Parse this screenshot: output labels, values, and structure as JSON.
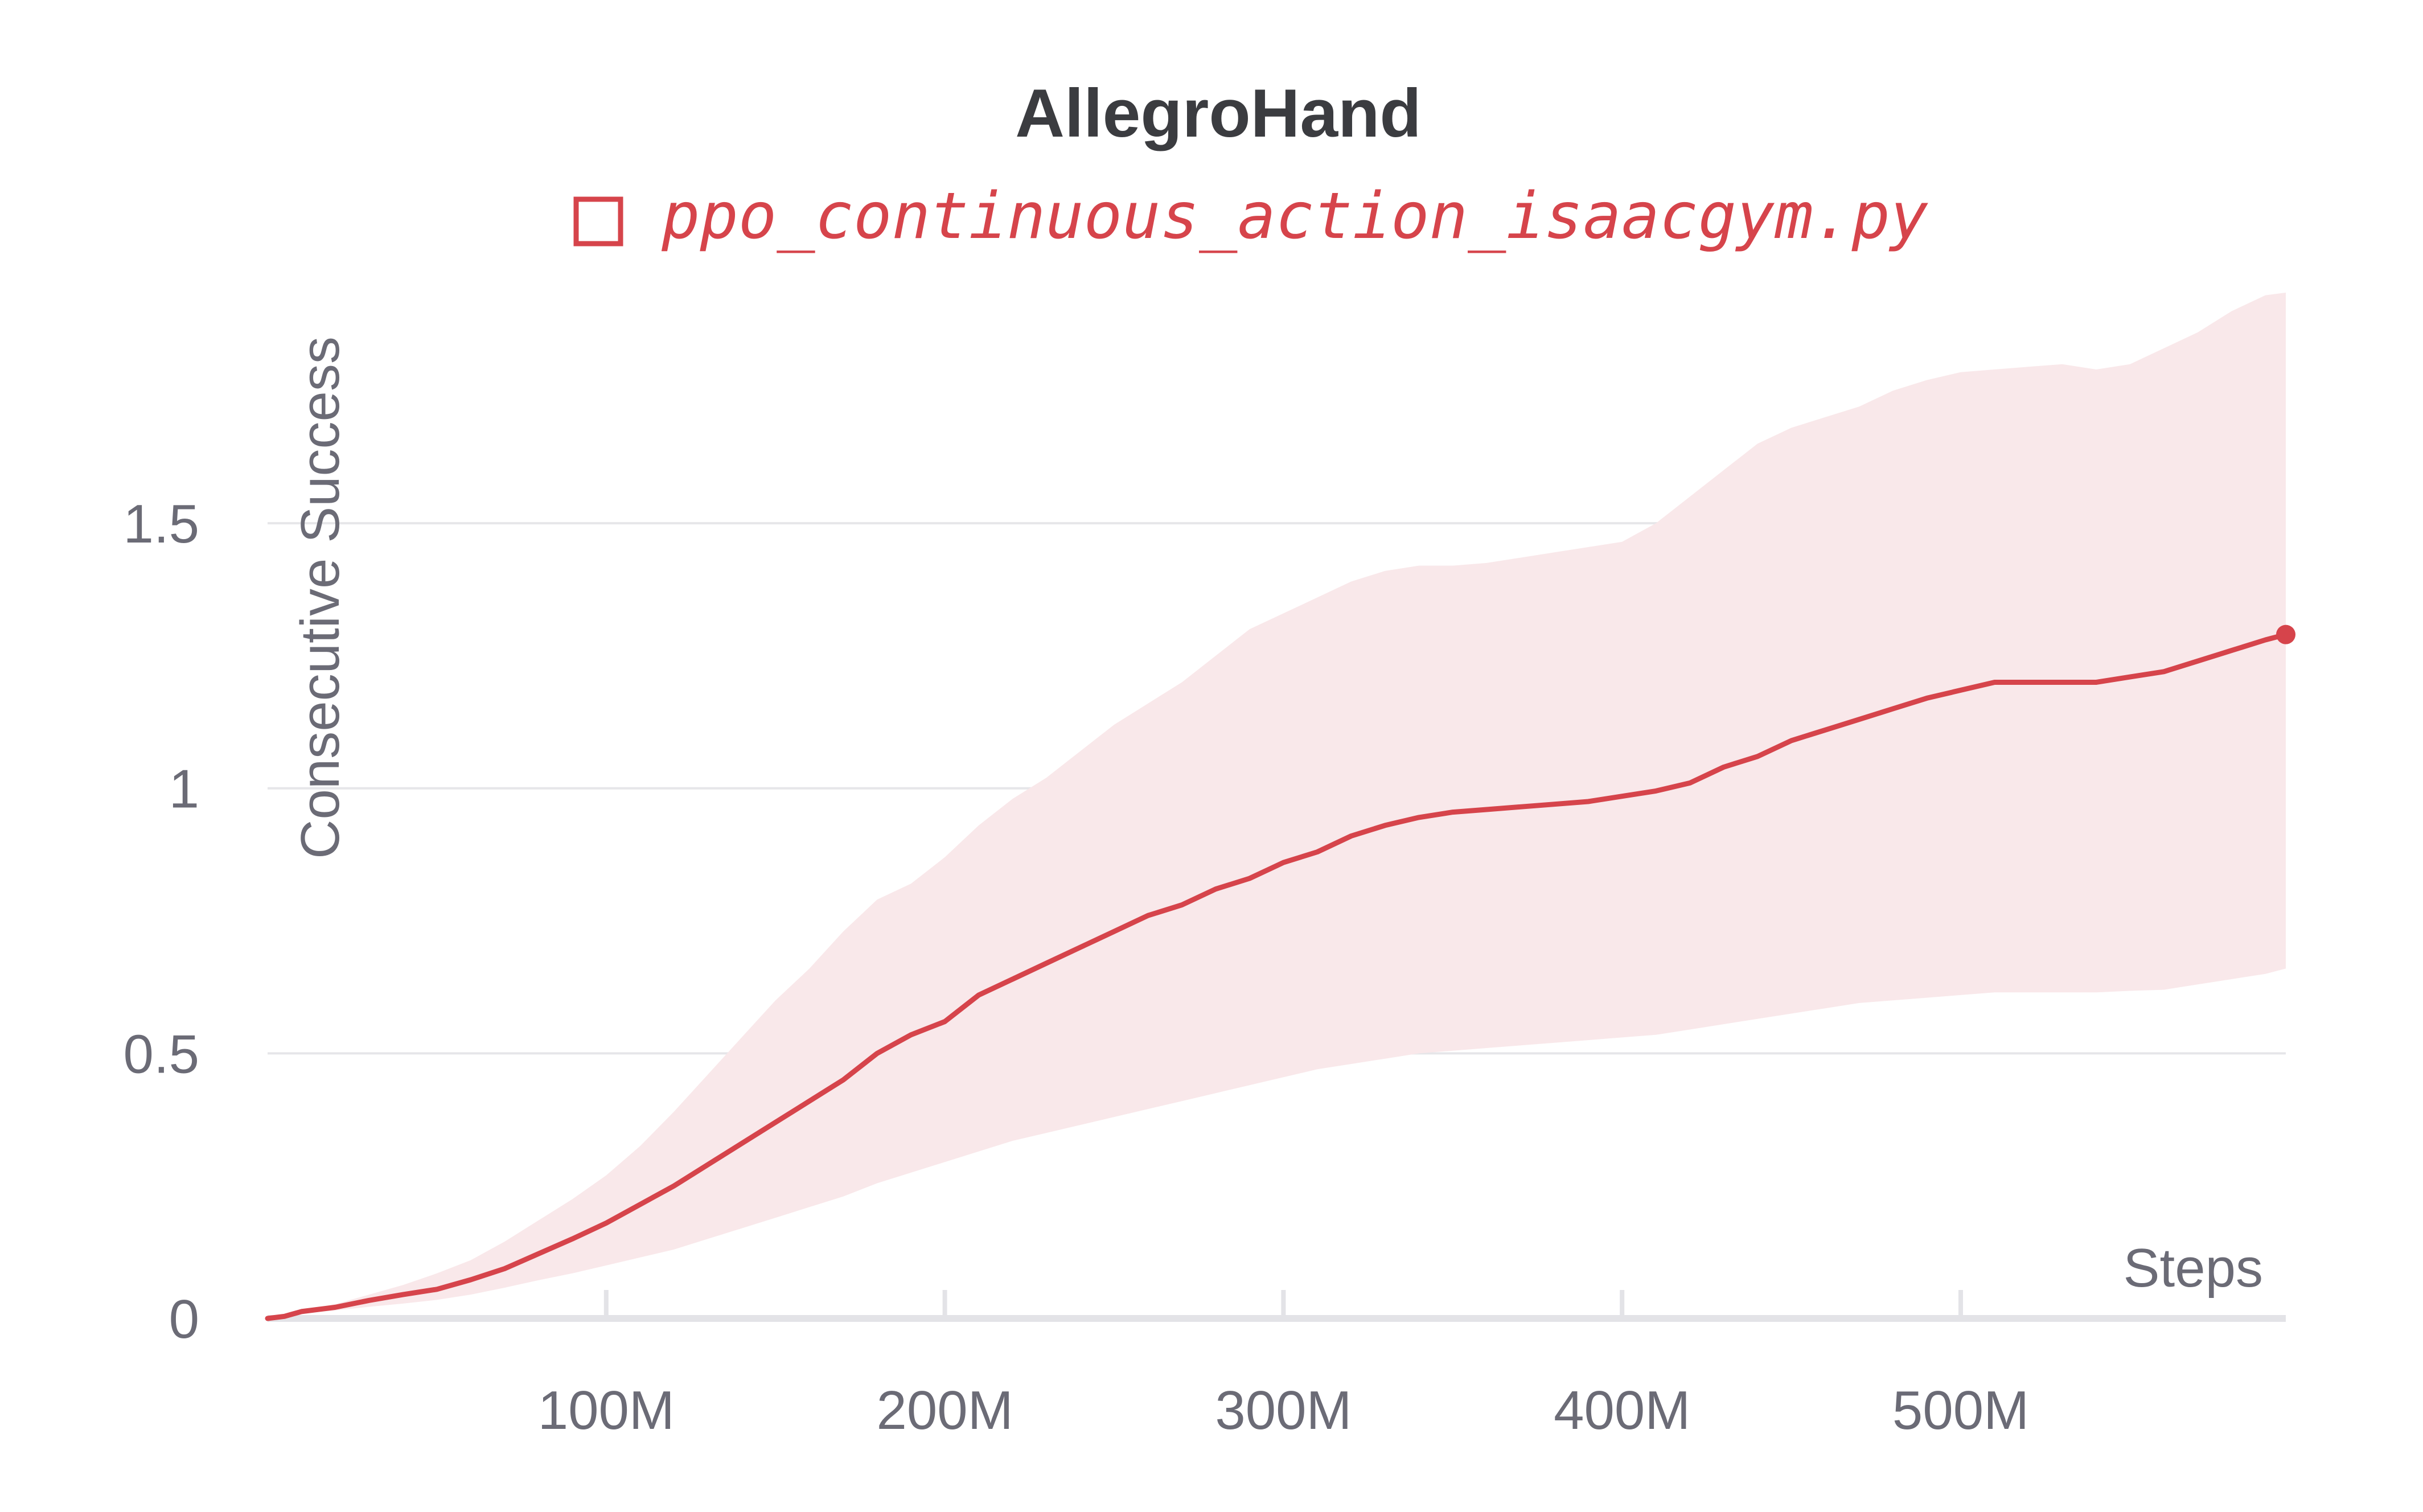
{
  "chart_data": {
    "type": "line",
    "title": "AllegroHand",
    "xlabel": "Steps",
    "ylabel": "Consecutive Success",
    "xlim": [
      0,
      596000000
    ],
    "ylim": [
      0,
      1.95
    ],
    "x_ticks": [
      100000000,
      200000000,
      300000000,
      400000000,
      500000000
    ],
    "x_tick_labels": [
      "100M",
      "200M",
      "300M",
      "400M",
      "500M"
    ],
    "y_ticks": [
      0,
      0.5,
      1,
      1.5
    ],
    "y_tick_labels": [
      "0",
      "0.5",
      "1",
      "1.5"
    ],
    "grid": true,
    "legend_position": "top",
    "series": [
      {
        "name": "ppo_continuous_action_isaacgym.py",
        "color": "#d6444b",
        "band_color": "#f9e8ea",
        "x": [
          0,
          5000000,
          10000000,
          20000000,
          30000000,
          40000000,
          50000000,
          60000000,
          70000000,
          80000000,
          90000000,
          100000000,
          110000000,
          120000000,
          130000000,
          140000000,
          150000000,
          160000000,
          170000000,
          180000000,
          190000000,
          200000000,
          210000000,
          220000000,
          230000000,
          240000000,
          250000000,
          260000000,
          270000000,
          280000000,
          290000000,
          300000000,
          310000000,
          320000000,
          330000000,
          340000000,
          350000000,
          360000000,
          370000000,
          380000000,
          390000000,
          400000000,
          410000000,
          420000000,
          430000000,
          440000000,
          450000000,
          460000000,
          470000000,
          480000000,
          490000000,
          500000000,
          510000000,
          520000000,
          530000000,
          540000000,
          550000000,
          560000000,
          570000000,
          580000000,
          590000000,
          596000000
        ],
        "values": [
          0,
          0.004,
          0.013,
          0.021,
          0.034,
          0.045,
          0.055,
          0.073,
          0.094,
          0.122,
          0.15,
          0.18,
          0.215,
          0.25,
          0.29,
          0.33,
          0.37,
          0.41,
          0.45,
          0.5,
          0.535,
          0.56,
          0.61,
          0.64,
          0.67,
          0.7,
          0.73,
          0.76,
          0.78,
          0.81,
          0.83,
          0.86,
          0.88,
          0.91,
          0.93,
          0.945,
          0.955,
          0.96,
          0.965,
          0.97,
          0.975,
          0.985,
          0.995,
          1.01,
          1.04,
          1.06,
          1.09,
          1.11,
          1.13,
          1.15,
          1.17,
          1.185,
          1.2,
          1.2,
          1.2,
          1.2,
          1.21,
          1.22,
          1.24,
          1.26,
          1.28,
          1.29
        ],
        "upper": [
          0,
          0.004,
          0.015,
          0.027,
          0.045,
          0.063,
          0.085,
          0.11,
          0.145,
          0.185,
          0.225,
          0.27,
          0.325,
          0.39,
          0.46,
          0.53,
          0.6,
          0.66,
          0.73,
          0.79,
          0.82,
          0.87,
          0.93,
          0.98,
          1.02,
          1.07,
          1.12,
          1.16,
          1.2,
          1.25,
          1.3,
          1.33,
          1.36,
          1.39,
          1.41,
          1.42,
          1.42,
          1.425,
          1.435,
          1.445,
          1.455,
          1.465,
          1.5,
          1.55,
          1.6,
          1.65,
          1.68,
          1.7,
          1.72,
          1.75,
          1.77,
          1.785,
          1.79,
          1.795,
          1.8,
          1.79,
          1.8,
          1.83,
          1.86,
          1.9,
          1.93,
          1.935
        ],
        "lower": [
          0,
          0.003,
          0.01,
          0.015,
          0.022,
          0.028,
          0.035,
          0.045,
          0.058,
          0.072,
          0.085,
          0.1,
          0.115,
          0.13,
          0.15,
          0.17,
          0.19,
          0.21,
          0.23,
          0.255,
          0.275,
          0.295,
          0.315,
          0.335,
          0.35,
          0.365,
          0.38,
          0.395,
          0.41,
          0.425,
          0.44,
          0.455,
          0.47,
          0.48,
          0.49,
          0.5,
          0.505,
          0.51,
          0.515,
          0.52,
          0.525,
          0.53,
          0.535,
          0.545,
          0.555,
          0.565,
          0.575,
          0.585,
          0.595,
          0.6,
          0.605,
          0.61,
          0.615,
          0.615,
          0.615,
          0.615,
          0.618,
          0.62,
          0.63,
          0.64,
          0.65,
          0.66
        ]
      }
    ]
  }
}
